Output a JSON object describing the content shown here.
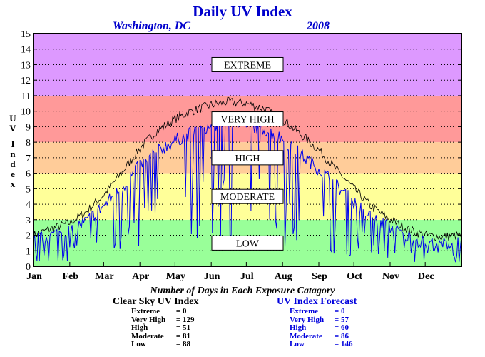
{
  "chart_data": {
    "type": "line",
    "title": "Daily UV Index",
    "location": "Washington, DC",
    "year": "2008",
    "ylabel": "UV Index",
    "ylim": [
      0,
      15
    ],
    "yticks": [
      0,
      1,
      2,
      3,
      4,
      5,
      6,
      7,
      8,
      9,
      10,
      11,
      12,
      13,
      14,
      15
    ],
    "xlim": [
      0,
      366
    ],
    "xtick_labels": [
      "Jan",
      "Feb",
      "Mar",
      "Apr",
      "May",
      "Jun",
      "Jul",
      "Aug",
      "Sep",
      "Oct",
      "Nov",
      "Dec"
    ],
    "xtick_days": [
      0,
      31,
      60,
      91,
      121,
      152,
      182,
      213,
      244,
      274,
      305,
      335
    ],
    "grid": true,
    "bands": [
      {
        "label": "LOW",
        "from": 0,
        "to": 3,
        "color": "#99ff99"
      },
      {
        "label": "MODERATE",
        "from": 3,
        "to": 6,
        "color": "#ffff99"
      },
      {
        "label": "HIGH",
        "from": 6,
        "to": 8,
        "color": "#ffcc99"
      },
      {
        "label": "VERY HIGH",
        "from": 8,
        "to": 11,
        "color": "#ff9999"
      },
      {
        "label": "EXTREME",
        "from": 11,
        "to": 15,
        "color": "#dd99ff"
      }
    ],
    "series": [
      {
        "name": "Clear Sky UV Index",
        "color": "#000000",
        "x": [
          0,
          15,
          31,
          45,
          60,
          75,
          91,
          105,
          121,
          135,
          152,
          166,
          182,
          196,
          213,
          227,
          244,
          258,
          274,
          288,
          305,
          320,
          335,
          350,
          366
        ],
        "y": [
          2.0,
          2.4,
          2.8,
          3.5,
          4.6,
          6.0,
          7.6,
          8.7,
          9.5,
          10.0,
          10.4,
          10.6,
          10.5,
          10.2,
          9.5,
          8.6,
          7.5,
          6.3,
          5.0,
          3.9,
          3.0,
          2.4,
          2.0,
          1.9,
          2.0
        ]
      },
      {
        "name": "UV Index Forecast",
        "color": "#0000ee",
        "x": [
          0,
          15,
          31,
          45,
          60,
          75,
          91,
          105,
          121,
          135,
          152,
          166,
          182,
          196,
          213,
          227,
          244,
          258,
          274,
          288,
          305,
          320,
          335,
          350,
          366
        ],
        "y": [
          1.6,
          2.0,
          2.3,
          2.9,
          3.9,
          5.0,
          6.5,
          7.4,
          8.1,
          8.6,
          9.0,
          9.3,
          9.2,
          8.9,
          8.2,
          7.3,
          6.3,
          5.3,
          4.1,
          3.2,
          2.5,
          1.9,
          1.5,
          1.4,
          1.6
        ]
      }
    ]
  },
  "exposure_note": "Number of Days in Each Exposure Catagory",
  "clear_sky": {
    "title": "Clear Sky UV Index",
    "rows": [
      {
        "label": "Extreme",
        "value": "0"
      },
      {
        "label": "Very High",
        "value": "129"
      },
      {
        "label": "High",
        "value": "51"
      },
      {
        "label": "Moderate",
        "value": "81"
      },
      {
        "label": "Low",
        "value": "88"
      }
    ]
  },
  "forecast": {
    "title": "UV Index Forecast",
    "rows": [
      {
        "label": "Extreme",
        "value": "0"
      },
      {
        "label": "Very High",
        "value": "57"
      },
      {
        "label": "High",
        "value": "60"
      },
      {
        "label": "Moderate",
        "value": "86"
      },
      {
        "label": "Low",
        "value": "146"
      }
    ]
  }
}
